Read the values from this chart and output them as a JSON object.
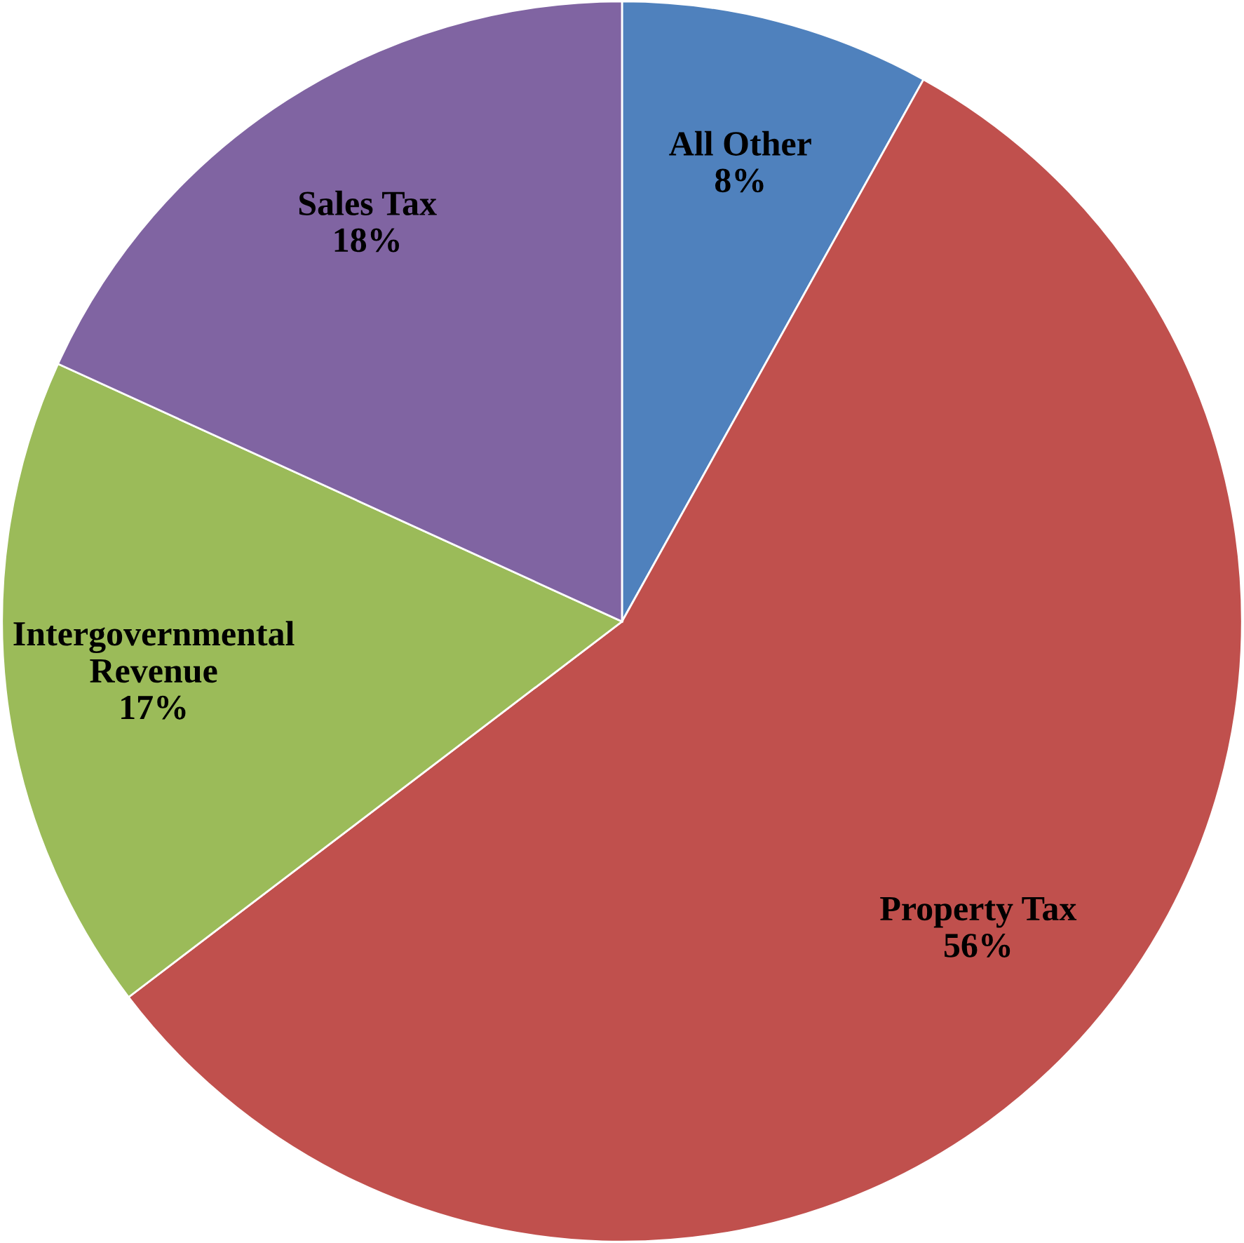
{
  "chart_data": {
    "type": "pie",
    "categories": [
      "All Other",
      "Property Tax",
      "Intergovernmental\nRevenue",
      "Sales Tax"
    ],
    "values": [
      8,
      56,
      17,
      18
    ],
    "value_labels": [
      "8%",
      "56%",
      "17%",
      "18%"
    ],
    "colors": [
      "#4f81bd",
      "#c0504d",
      "#9bbb59",
      "#8064a2"
    ]
  }
}
